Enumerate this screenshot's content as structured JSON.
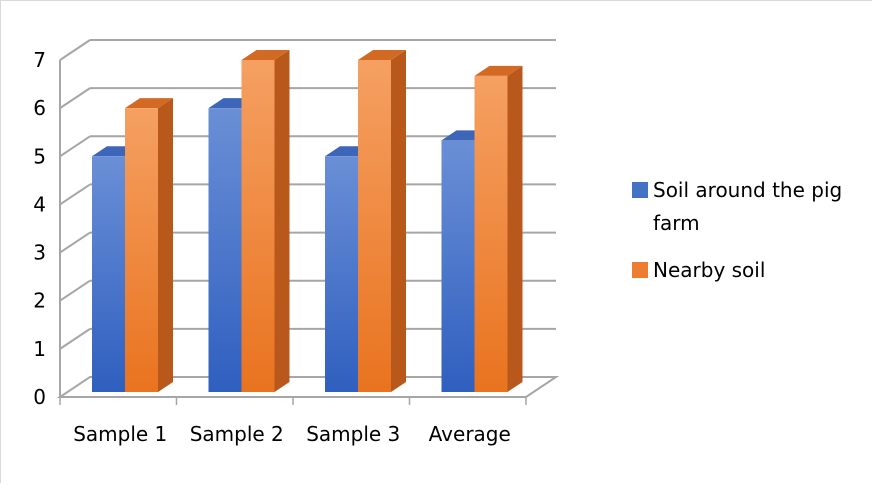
{
  "chart_data": {
    "type": "bar",
    "style": "3d-clustered-column",
    "categories": [
      "Sample 1",
      "Sample 2",
      "Sample 3",
      "Average"
    ],
    "series": [
      {
        "name": "Soil around the pig farm",
        "values": [
          5,
          6,
          5,
          5.33
        ],
        "color": "#4472c4"
      },
      {
        "name": "Nearby soil",
        "values": [
          6,
          7,
          7,
          6.67
        ],
        "color": "#ed7d31"
      }
    ],
    "ylim": [
      0,
      7
    ],
    "yticks": [
      0,
      1,
      2,
      3,
      4,
      5,
      6,
      7
    ],
    "grid": true,
    "legend_position": "right",
    "legend_lines": [
      [
        "Soil around the pig",
        "farm"
      ],
      [
        "Nearby soil"
      ]
    ]
  }
}
